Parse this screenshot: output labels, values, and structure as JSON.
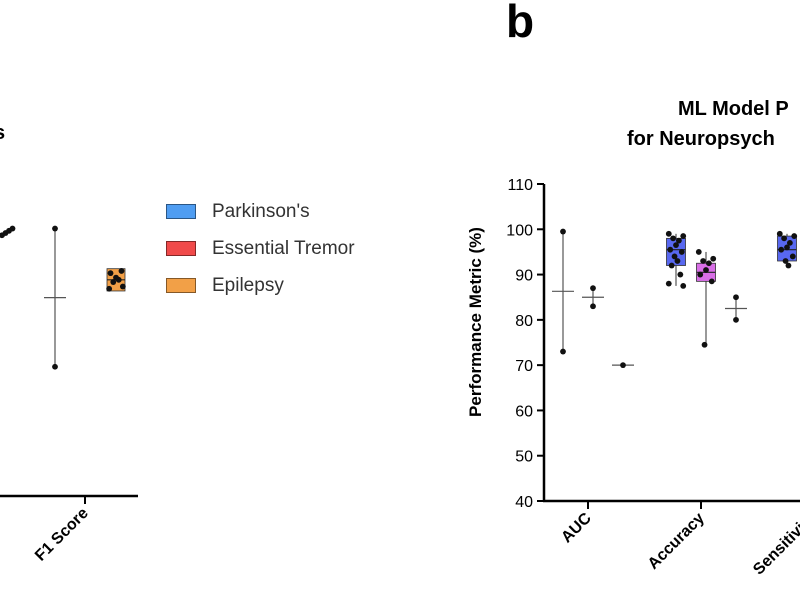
{
  "panel_b_letter": "b",
  "panel_b_title_line1": "ML Model P",
  "panel_b_title_line2": "for Neuropsych",
  "panel_a_title_fragment": "s",
  "legend": {
    "items": [
      {
        "label": "Parkinson's",
        "color": "#4f9df2"
      },
      {
        "label": "Essential Tremor",
        "color": "#f04a4a"
      },
      {
        "label": "Epilepsy",
        "color": "#f2a047"
      }
    ]
  },
  "chart_data": [
    {
      "type": "box",
      "panel": "a",
      "categories": [
        "F1 Score"
      ],
      "series": [
        {
          "category": "F1 Score",
          "color": "#ffffff",
          "whisker": [
            69,
            100
          ],
          "median": 84.5,
          "points": [
            100,
            69
          ]
        },
        {
          "category": "F1 Score",
          "color": "#f2a047",
          "box": [
            86,
            91
          ],
          "median": 88.5,
          "points": [
            86.5,
            87,
            88,
            88.5,
            89,
            90,
            90.5
          ]
        }
      ],
      "partial_points": [
        98.5,
        99,
        99.5,
        100
      ]
    },
    {
      "type": "box",
      "panel": "b",
      "ylabel": "Performance Metric (%)",
      "ylim": [
        40,
        110
      ],
      "yticks": [
        40,
        50,
        60,
        70,
        80,
        90,
        100,
        110
      ],
      "categories": [
        "AUC",
        "Accuracy",
        "Sensitivity"
      ],
      "series": [
        {
          "category": "AUC",
          "color": "#ffffff",
          "whisker": [
            73,
            99.5
          ],
          "median": 86.3,
          "points": [
            99.5,
            73
          ]
        },
        {
          "category": "AUC",
          "color": "#ffffff",
          "whisker": [
            83,
            87
          ],
          "median": 85,
          "points": [
            87,
            83
          ]
        },
        {
          "category": "AUC",
          "color": "#ffffff",
          "whisker": [
            70,
            70
          ],
          "median": 70,
          "points": [
            70
          ]
        },
        {
          "category": "Accuracy",
          "color": "#5868f0",
          "box": [
            92,
            98
          ],
          "median": 95.5,
          "whisker": [
            87.5,
            99
          ],
          "points": [
            99,
            98.5,
            98,
            97.5,
            96.5,
            95.5,
            95,
            94,
            93,
            92,
            90,
            88,
            87.5
          ]
        },
        {
          "category": "Accuracy",
          "color": "#d86ee6",
          "box": [
            88.5,
            92.5
          ],
          "median": 90.5,
          "whisker": [
            74.5,
            95
          ],
          "points": [
            95,
            93.5,
            93,
            92.5,
            91,
            90,
            88.5,
            74.5
          ]
        },
        {
          "category": "Accuracy",
          "color": "#ffffff",
          "whisker": [
            80,
            85
          ],
          "median": 82.5,
          "points": [
            85,
            80
          ]
        },
        {
          "category": "Sensitivity",
          "color": "#5868f0",
          "box": [
            93,
            98.5
          ],
          "median": 95.5,
          "whisker": [
            92,
            99
          ],
          "points": [
            99,
            98.5,
            98,
            97,
            96,
            95.5,
            94,
            93,
            92
          ]
        }
      ]
    }
  ]
}
